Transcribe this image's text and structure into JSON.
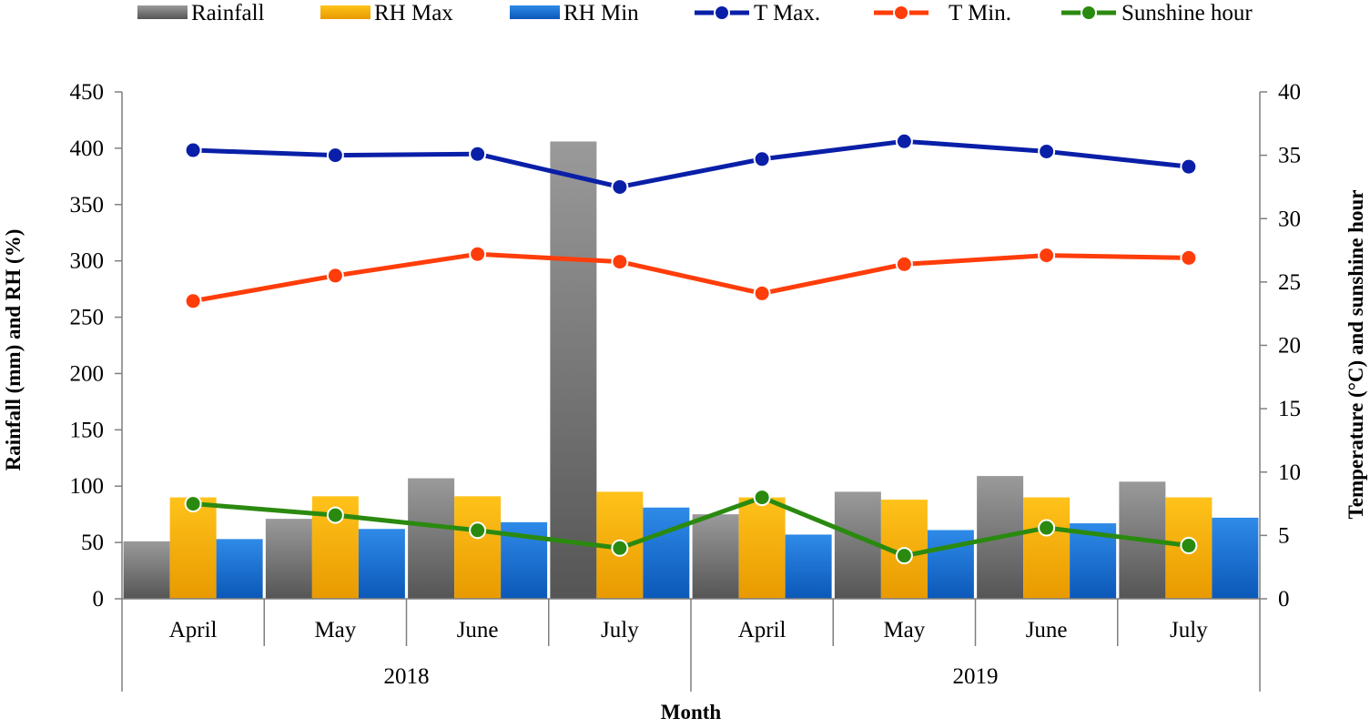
{
  "chart_data": {
    "type": "bar",
    "categories": [
      "April",
      "May",
      "June",
      "July",
      "April",
      "May",
      "June",
      "July"
    ],
    "groups": [
      {
        "label": "2018",
        "count": 4
      },
      {
        "label": "2019",
        "count": 4
      }
    ],
    "xlabel": "Month",
    "ylabel": "Rainfall (mm) and RH (%)",
    "y2label": "Temperature (°C) and sunshine hour",
    "ylim": [
      0,
      450
    ],
    "yticks": [
      0,
      50,
      100,
      150,
      200,
      250,
      300,
      350,
      400,
      450
    ],
    "y2lim": [
      0,
      40
    ],
    "y2ticks": [
      0,
      5,
      10,
      15,
      20,
      25,
      30,
      35,
      40
    ],
    "grid": false,
    "legend_position": "top",
    "bar_series": [
      {
        "name": "Rainfall",
        "color": "#6b6b6b",
        "values": [
          51,
          71,
          107,
          406,
          75,
          95,
          109,
          104
        ]
      },
      {
        "name": "RH Max",
        "color": "#f2a900",
        "values": [
          90,
          91,
          91,
          95,
          90,
          88,
          90,
          90
        ]
      },
      {
        "name": "RH Min",
        "color": "#1a6fd1",
        "values": [
          53,
          62,
          68,
          81,
          57,
          61,
          67,
          72
        ]
      }
    ],
    "line_series": [
      {
        "name": "T Max.",
        "color": "#0a1fa8",
        "axis": "right",
        "dashed": false,
        "values": [
          35.4,
          35.0,
          35.1,
          32.5,
          34.7,
          36.1,
          35.3,
          34.1
        ]
      },
      {
        "name": "T Min.",
        "color": "#ff3d0a",
        "axis": "right",
        "dashed": true,
        "values": [
          23.5,
          25.5,
          27.2,
          26.6,
          24.1,
          26.4,
          27.1,
          26.9
        ]
      },
      {
        "name": "Sunshine hour",
        "color": "#2a8a0f",
        "axis": "right",
        "dashed": false,
        "values": [
          7.5,
          6.6,
          5.4,
          4.0,
          8.0,
          3.4,
          5.6,
          4.2
        ]
      }
    ]
  }
}
